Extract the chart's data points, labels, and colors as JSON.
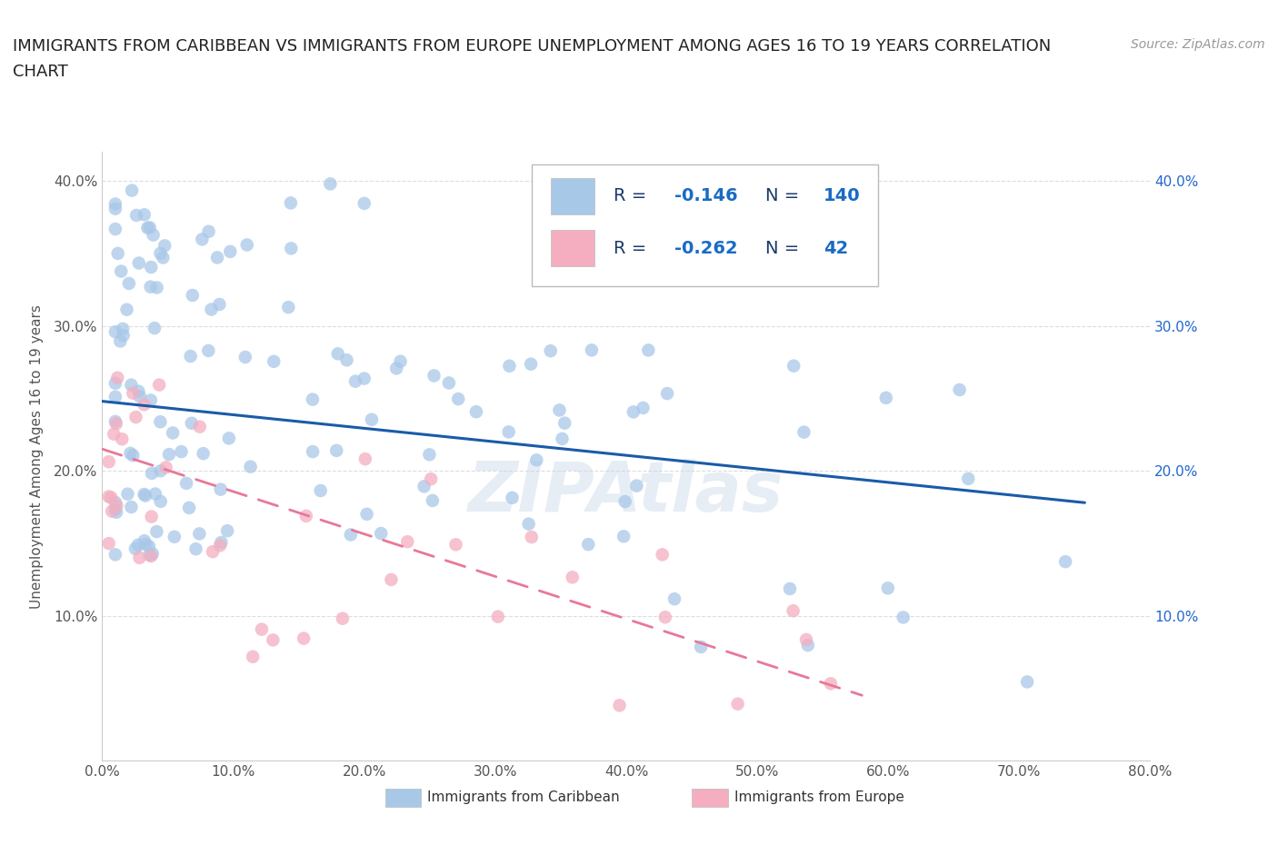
{
  "title_line1": "IMMIGRANTS FROM CARIBBEAN VS IMMIGRANTS FROM EUROPE UNEMPLOYMENT AMONG AGES 16 TO 19 YEARS CORRELATION",
  "title_line2": "CHART",
  "source": "Source: ZipAtlas.com",
  "ylabel": "Unemployment Among Ages 16 to 19 years",
  "xlim": [
    0.0,
    0.8
  ],
  "ylim": [
    0.0,
    0.42
  ],
  "xticks": [
    0.0,
    0.1,
    0.2,
    0.3,
    0.4,
    0.5,
    0.6,
    0.7,
    0.8
  ],
  "xticklabels": [
    "0.0%",
    "10.0%",
    "20.0%",
    "30.0%",
    "40.0%",
    "50.0%",
    "60.0%",
    "70.0%",
    "80.0%"
  ],
  "yticks": [
    0.0,
    0.1,
    0.2,
    0.3,
    0.4
  ],
  "yticklabels_left": [
    "",
    "10.0%",
    "20.0%",
    "30.0%",
    "40.0%"
  ],
  "yticklabels_right": [
    "",
    "10.0%",
    "20.0%",
    "30.0%",
    "40.0%"
  ],
  "caribbean_color": "#a8c8e8",
  "europe_color": "#f4aec0",
  "caribbean_line_color": "#1a5ba8",
  "europe_line_color": "#e87898",
  "caribbean_R": -0.146,
  "caribbean_N": 140,
  "europe_R": -0.262,
  "europe_N": 42,
  "legend_label_color": "#1a3a6b",
  "legend_value_color": "#1a6bc4",
  "watermark": "ZIPAtlas",
  "bg_color": "#ffffff",
  "grid_color": "#dddddd",
  "tick_color": "#555555",
  "title_fontsize": 13,
  "source_fontsize": 10,
  "tick_fontsize": 11,
  "ylabel_fontsize": 11,
  "legend_fontsize": 14,
  "watermark_fontsize": 55,
  "carib_line_x0": 0.0,
  "carib_line_x1": 0.75,
  "carib_line_y0": 0.248,
  "carib_line_y1": 0.178,
  "europe_line_x0": 0.0,
  "europe_line_x1": 0.58,
  "europe_line_y0": 0.215,
  "europe_line_y1": 0.045
}
